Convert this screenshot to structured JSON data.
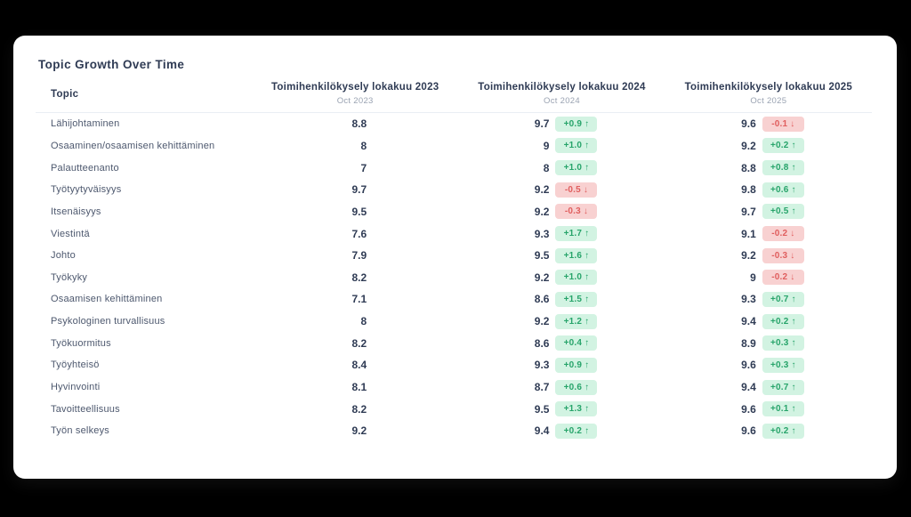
{
  "title": "Topic Growth Over Time",
  "colors": {
    "bg": "#000000",
    "card_bg": "#ffffff",
    "heading": "#2f3b54",
    "topic_text": "#4d586e",
    "sub_text": "#9aa3b2",
    "border": "#e9eef4",
    "positive_bg": "#d2f3e2",
    "positive_text": "#27a46a",
    "negative_bg": "#f8d1d1",
    "negative_text": "#e05e5e"
  },
  "table": {
    "topic_header": "Topic",
    "columns": [
      {
        "label": "Toimihenkilökysely lokakuu 2023",
        "sublabel": "Oct 2023"
      },
      {
        "label": "Toimihenkilökysely lokakuu 2024",
        "sublabel": "Oct 2024"
      },
      {
        "label": "Toimihenkilökysely lokakuu 2025",
        "sublabel": "Oct 2025"
      }
    ],
    "rows": [
      {
        "topic": "Lähijohtaminen",
        "values": [
          {
            "v": "8.8"
          },
          {
            "v": "9.7",
            "delta": "+0.9 ↑",
            "dir": "up"
          },
          {
            "v": "9.6",
            "delta": "-0.1 ↓",
            "dir": "down"
          }
        ]
      },
      {
        "topic": "Osaaminen/osaamisen kehittäminen",
        "values": [
          {
            "v": "8"
          },
          {
            "v": "9",
            "delta": "+1.0 ↑",
            "dir": "up"
          },
          {
            "v": "9.2",
            "delta": "+0.2 ↑",
            "dir": "up"
          }
        ]
      },
      {
        "topic": "Palautteenanto",
        "values": [
          {
            "v": "7"
          },
          {
            "v": "8",
            "delta": "+1.0 ↑",
            "dir": "up"
          },
          {
            "v": "8.8",
            "delta": "+0.8 ↑",
            "dir": "up"
          }
        ]
      },
      {
        "topic": "Työtyytyväisyys",
        "values": [
          {
            "v": "9.7"
          },
          {
            "v": "9.2",
            "delta": "-0.5 ↓",
            "dir": "down"
          },
          {
            "v": "9.8",
            "delta": "+0.6 ↑",
            "dir": "up"
          }
        ]
      },
      {
        "topic": "Itsenäisyys",
        "values": [
          {
            "v": "9.5"
          },
          {
            "v": "9.2",
            "delta": "-0.3 ↓",
            "dir": "down"
          },
          {
            "v": "9.7",
            "delta": "+0.5 ↑",
            "dir": "up"
          }
        ]
      },
      {
        "topic": "Viestintä",
        "values": [
          {
            "v": "7.6"
          },
          {
            "v": "9.3",
            "delta": "+1.7 ↑",
            "dir": "up"
          },
          {
            "v": "9.1",
            "delta": "-0.2 ↓",
            "dir": "down"
          }
        ]
      },
      {
        "topic": "Johto",
        "values": [
          {
            "v": "7.9"
          },
          {
            "v": "9.5",
            "delta": "+1.6 ↑",
            "dir": "up"
          },
          {
            "v": "9.2",
            "delta": "-0.3 ↓",
            "dir": "down"
          }
        ]
      },
      {
        "topic": "Työkyky",
        "values": [
          {
            "v": "8.2"
          },
          {
            "v": "9.2",
            "delta": "+1.0 ↑",
            "dir": "up"
          },
          {
            "v": "9",
            "delta": "-0.2 ↓",
            "dir": "down"
          }
        ]
      },
      {
        "topic": "Osaamisen kehittäminen",
        "values": [
          {
            "v": "7.1"
          },
          {
            "v": "8.6",
            "delta": "+1.5 ↑",
            "dir": "up"
          },
          {
            "v": "9.3",
            "delta": "+0.7 ↑",
            "dir": "up"
          }
        ]
      },
      {
        "topic": "Psykologinen turvallisuus",
        "values": [
          {
            "v": "8"
          },
          {
            "v": "9.2",
            "delta": "+1.2 ↑",
            "dir": "up"
          },
          {
            "v": "9.4",
            "delta": "+0.2 ↑",
            "dir": "up"
          }
        ]
      },
      {
        "topic": "Työkuormitus",
        "values": [
          {
            "v": "8.2"
          },
          {
            "v": "8.6",
            "delta": "+0.4 ↑",
            "dir": "up"
          },
          {
            "v": "8.9",
            "delta": "+0.3 ↑",
            "dir": "up"
          }
        ]
      },
      {
        "topic": "Työyhteisö",
        "values": [
          {
            "v": "8.4"
          },
          {
            "v": "9.3",
            "delta": "+0.9 ↑",
            "dir": "up"
          },
          {
            "v": "9.6",
            "delta": "+0.3 ↑",
            "dir": "up"
          }
        ]
      },
      {
        "topic": "Hyvinvointi",
        "values": [
          {
            "v": "8.1"
          },
          {
            "v": "8.7",
            "delta": "+0.6 ↑",
            "dir": "up"
          },
          {
            "v": "9.4",
            "delta": "+0.7 ↑",
            "dir": "up"
          }
        ]
      },
      {
        "topic": "Tavoitteellisuus",
        "values": [
          {
            "v": "8.2"
          },
          {
            "v": "9.5",
            "delta": "+1.3 ↑",
            "dir": "up"
          },
          {
            "v": "9.6",
            "delta": "+0.1 ↑",
            "dir": "up"
          }
        ]
      },
      {
        "topic": "Työn selkeys",
        "values": [
          {
            "v": "9.2"
          },
          {
            "v": "9.4",
            "delta": "+0.2 ↑",
            "dir": "up"
          },
          {
            "v": "9.6",
            "delta": "+0.2 ↑",
            "dir": "up"
          }
        ]
      }
    ]
  }
}
